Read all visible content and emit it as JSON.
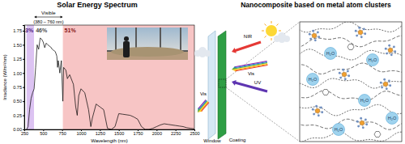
{
  "chart_data": {
    "type": "line",
    "title": "Solar Energy Spectrum",
    "x_label": "Wavelength (nm)",
    "y_label": "Irradiance (W/m²/nm)",
    "x": [
      280,
      300,
      320,
      340,
      360,
      380,
      400,
      420,
      440,
      460,
      480,
      500,
      520,
      540,
      560,
      580,
      600,
      620,
      640,
      660,
      680,
      690,
      700,
      720,
      740,
      760,
      770,
      800,
      820,
      850,
      900,
      930,
      950,
      970,
      1000,
      1050,
      1100,
      1130,
      1150,
      1200,
      1250,
      1300,
      1350,
      1400,
      1450,
      1500,
      1550,
      1600,
      1650,
      1700,
      1750,
      1800,
      1850,
      1900,
      1950,
      2000,
      2050,
      2100,
      2150,
      2200,
      2250,
      2300,
      2350,
      2400,
      2450,
      2500
    ],
    "values": [
      0,
      0.05,
      0.35,
      0.55,
      0.65,
      0.72,
      1.1,
      1.5,
      1.42,
      1.62,
      1.6,
      1.55,
      1.45,
      1.53,
      1.5,
      1.48,
      1.46,
      1.42,
      1.4,
      1.38,
      1.3,
      1.1,
      1.22,
      1.0,
      1.22,
      0.5,
      1.1,
      1.05,
      0.9,
      0.97,
      0.8,
      0.4,
      0.25,
      0.6,
      0.72,
      0.65,
      0.35,
      0.05,
      0.2,
      0.45,
      0.4,
      0.35,
      0.02,
      0,
      0.05,
      0.28,
      0.27,
      0.26,
      0.25,
      0.22,
      0.18,
      0.05,
      0,
      0,
      0.02,
      0.05,
      0.08,
      0.1,
      0.09,
      0.08,
      0.07,
      0.06,
      0.05,
      0.03,
      0.02,
      0.01
    ],
    "color": "#000000",
    "xlim": [
      250,
      2500
    ],
    "ylim": [
      0,
      1.85
    ],
    "xticks": [
      250,
      500,
      750,
      1000,
      1250,
      1500,
      1750,
      2000,
      2250,
      2500
    ],
    "yticks": [
      {
        "value": 0,
        "label": "0.00"
      },
      {
        "value": 0.25,
        "label": "0.25"
      },
      {
        "value": 0.5,
        "label": "0.50"
      },
      {
        "value": 0.75,
        "label": "0.75"
      },
      {
        "value": 1,
        "label": "1.00"
      },
      {
        "value": 1.25,
        "label": "1.25"
      },
      {
        "value": 1.5,
        "label": "1.50"
      },
      {
        "value": 1.75,
        "label": "1.75"
      }
    ],
    "regions": [
      {
        "from": 280,
        "to": 380,
        "label": "3%",
        "color": "#dcc3f2"
      },
      {
        "from": 380,
        "to": 760,
        "label": "46%",
        "color": "#ffffff"
      },
      {
        "from": 760,
        "to": 2500,
        "label": "51%",
        "color": "#f7c5c5"
      }
    ],
    "annotation": {
      "label": "Visible",
      "range_label": "(380 – 760 nm)",
      "from": 380,
      "to": 760
    }
  },
  "diagram": {
    "title": "Nanocomposite based on metal atom clusters",
    "window_label": "Window",
    "coating_label": "Coating",
    "incoming": [
      {
        "label": "NIR",
        "color": "#e53935"
      },
      {
        "label": "Vis",
        "colors": [
          "#e53935",
          "#fb8c00",
          "#fdd835",
          "#43a047",
          "#1e88e5",
          "#8e24aa"
        ]
      },
      {
        "label": "UV",
        "color": "#5e35b1"
      }
    ],
    "outgoing": {
      "label": "Vis",
      "colors": [
        "#e53935",
        "#fb8c00",
        "#fdd835",
        "#43a047",
        "#1e88e5",
        "#8e24aa"
      ]
    },
    "molecules": [
      "H₂O",
      "H₂O",
      "H₂O",
      "H₂O",
      "H₂O",
      "H₂O"
    ]
  }
}
